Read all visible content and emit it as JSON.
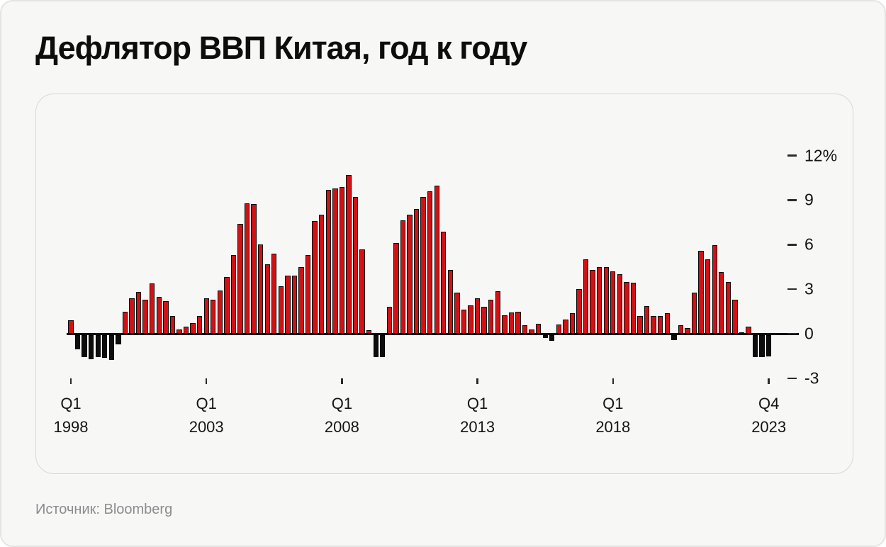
{
  "page": {
    "title": "Дефлятор ВВП Китая, год к году",
    "source_label": "Источник: Bloomberg"
  },
  "colors": {
    "bar_positive": "#d21115",
    "bar_negative": "#0d0d0d",
    "axis_text": "#141414",
    "background": "#f7f7f5"
  },
  "chart_data": {
    "type": "bar",
    "title": "Дефлятор ВВП Китая, год к году",
    "unit": "%",
    "ylim": [
      -3,
      12
    ],
    "grid": false,
    "legend": false,
    "y_axis": {
      "side": "right",
      "ticks": [
        {
          "label": "12%",
          "value": 12
        },
        {
          "label": "9",
          "value": 9
        },
        {
          "label": "6",
          "value": 6
        },
        {
          "label": "3",
          "value": 3
        },
        {
          "label": "0",
          "value": 0
        },
        {
          "label": "-3",
          "value": -3
        }
      ]
    },
    "x_axis": {
      "ticks": [
        {
          "quarter": "Q1",
          "year": "1998",
          "bar_index": 0
        },
        {
          "quarter": "Q1",
          "year": "2003",
          "bar_index": 20
        },
        {
          "quarter": "Q1",
          "year": "2008",
          "bar_index": 40
        },
        {
          "quarter": "Q1",
          "year": "2013",
          "bar_index": 60
        },
        {
          "quarter": "Q1",
          "year": "2018",
          "bar_index": 80
        },
        {
          "quarter": "Q4",
          "year": "2023",
          "bar_index": 103
        }
      ]
    },
    "categories": [
      "Q1 1998",
      "Q2 1998",
      "Q3 1998",
      "Q4 1998",
      "Q1 1999",
      "Q2 1999",
      "Q3 1999",
      "Q4 1999",
      "Q1 2000",
      "Q2 2000",
      "Q3 2000",
      "Q4 2000",
      "Q1 2001",
      "Q2 2001",
      "Q3 2001",
      "Q4 2001",
      "Q1 2002",
      "Q2 2002",
      "Q3 2002",
      "Q4 2002",
      "Q1 2003",
      "Q2 2003",
      "Q3 2003",
      "Q4 2003",
      "Q1 2004",
      "Q2 2004",
      "Q3 2004",
      "Q4 2004",
      "Q1 2005",
      "Q2 2005",
      "Q3 2005",
      "Q4 2005",
      "Q1 2006",
      "Q2 2006",
      "Q3 2006",
      "Q4 2006",
      "Q1 2007",
      "Q2 2007",
      "Q3 2007",
      "Q4 2007",
      "Q1 2008",
      "Q2 2008",
      "Q3 2008",
      "Q4 2008",
      "Q1 2009",
      "Q2 2009",
      "Q3 2009",
      "Q4 2009",
      "Q1 2010",
      "Q2 2010",
      "Q3 2010",
      "Q4 2010",
      "Q1 2011",
      "Q2 2011",
      "Q3 2011",
      "Q4 2011",
      "Q1 2012",
      "Q2 2012",
      "Q3 2012",
      "Q4 2012",
      "Q1 2013",
      "Q2 2013",
      "Q3 2013",
      "Q4 2013",
      "Q1 2014",
      "Q2 2014",
      "Q3 2014",
      "Q4 2014",
      "Q1 2015",
      "Q2 2015",
      "Q3 2015",
      "Q4 2015",
      "Q1 2016",
      "Q2 2016",
      "Q3 2016",
      "Q4 2016",
      "Q1 2017",
      "Q2 2017",
      "Q3 2017",
      "Q4 2017",
      "Q1 2018",
      "Q2 2018",
      "Q3 2018",
      "Q4 2018",
      "Q1 2019",
      "Q2 2019",
      "Q3 2019",
      "Q4 2019",
      "Q1 2020",
      "Q2 2020",
      "Q3 2020",
      "Q4 2020",
      "Q1 2021",
      "Q2 2021",
      "Q3 2021",
      "Q4 2021",
      "Q1 2022",
      "Q2 2022",
      "Q3 2022",
      "Q4 2022",
      "Q1 2023",
      "Q2 2023",
      "Q3 2023",
      "Q4 2023"
    ],
    "values": [
      0.9,
      -1.0,
      -1.5,
      -1.65,
      -1.5,
      -1.55,
      -1.7,
      -0.65,
      1.5,
      2.4,
      2.8,
      2.3,
      3.4,
      2.5,
      2.2,
      1.2,
      0.3,
      0.5,
      0.7,
      1.2,
      2.4,
      2.3,
      2.9,
      3.8,
      5.3,
      7.4,
      8.8,
      8.75,
      6.0,
      4.7,
      5.4,
      3.2,
      3.9,
      3.9,
      4.5,
      5.3,
      7.6,
      8.0,
      9.7,
      9.8,
      9.9,
      10.7,
      9.2,
      5.7,
      0.25,
      -1.5,
      -1.5,
      1.8,
      6.1,
      7.65,
      8.0,
      8.4,
      9.2,
      9.6,
      10.0,
      6.85,
      4.3,
      2.75,
      1.6,
      1.9,
      2.4,
      1.8,
      2.3,
      2.85,
      1.25,
      1.45,
      1.5,
      0.55,
      0.3,
      0.65,
      -0.2,
      -0.4,
      0.6,
      0.95,
      1.4,
      3.0,
      5.0,
      4.3,
      4.5,
      4.5,
      4.2,
      4.0,
      3.5,
      3.45,
      1.2,
      1.85,
      1.2,
      1.2,
      1.4,
      -0.35,
      0.55,
      0.4,
      2.75,
      5.6,
      5.0,
      5.95,
      4.15,
      3.5,
      2.3,
      0.1,
      0.5,
      -1.5,
      -1.5,
      -1.45
    ]
  }
}
